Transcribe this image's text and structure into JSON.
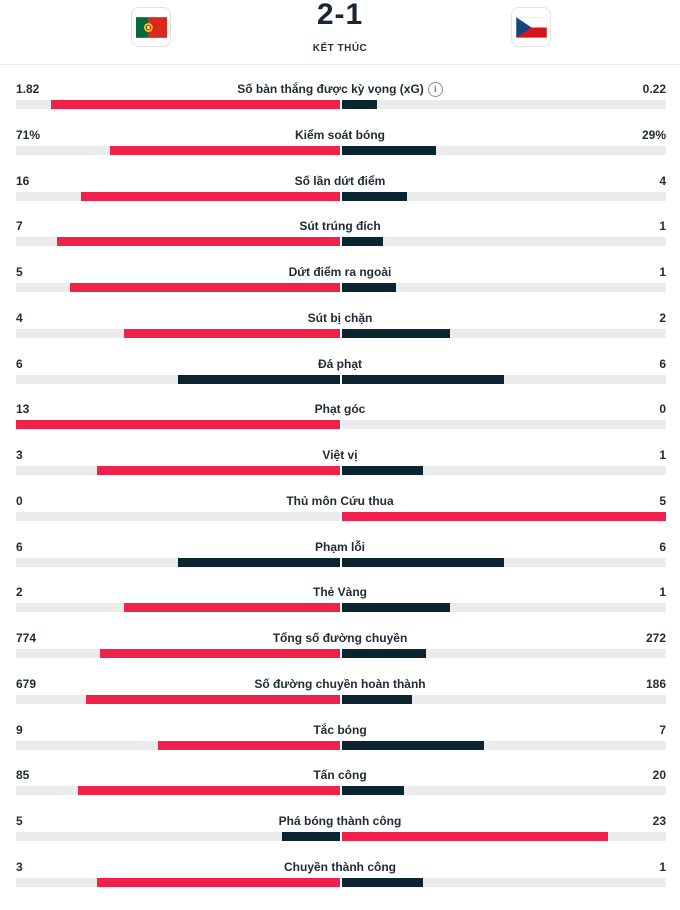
{
  "match": {
    "score": "2-1",
    "status": "KẾT THÚC",
    "home_flag": "portugal-flag",
    "away_flag": "czechia-flag"
  },
  "colors": {
    "winner": "#f0224b",
    "loser": "#0b2530",
    "track": "#ebebeb"
  },
  "stats": [
    {
      "label": "Số bàn thắng được kỳ vọng (xG)",
      "home": "1.82",
      "away": "0.22",
      "home_n": 1.82,
      "away_n": 0.22,
      "info": true
    },
    {
      "label": "Kiểm soát bóng",
      "home": "71%",
      "away": "29%",
      "home_n": 71,
      "away_n": 29
    },
    {
      "label": "Số lần dứt điểm",
      "home": "16",
      "away": "4",
      "home_n": 16,
      "away_n": 4
    },
    {
      "label": "Sút trúng đích",
      "home": "7",
      "away": "1",
      "home_n": 7,
      "away_n": 1
    },
    {
      "label": "Dứt điểm ra ngoài",
      "home": "5",
      "away": "1",
      "home_n": 5,
      "away_n": 1
    },
    {
      "label": "Sút bị chặn",
      "home": "4",
      "away": "2",
      "home_n": 4,
      "away_n": 2
    },
    {
      "label": "Đá phạt",
      "home": "6",
      "away": "6",
      "home_n": 6,
      "away_n": 6
    },
    {
      "label": "Phạt góc",
      "home": "13",
      "away": "0",
      "home_n": 13,
      "away_n": 0
    },
    {
      "label": "Việt vị",
      "home": "3",
      "away": "1",
      "home_n": 3,
      "away_n": 1
    },
    {
      "label": "Thủ môn Cứu thua",
      "home": "0",
      "away": "5",
      "home_n": 0,
      "away_n": 5
    },
    {
      "label": "Phạm lỗi",
      "home": "6",
      "away": "6",
      "home_n": 6,
      "away_n": 6
    },
    {
      "label": "Thẻ Vàng",
      "home": "2",
      "away": "1",
      "home_n": 2,
      "away_n": 1
    },
    {
      "label": "Tổng số đường chuyền",
      "home": "774",
      "away": "272",
      "home_n": 774,
      "away_n": 272
    },
    {
      "label": "Số đường chuyền hoàn thành",
      "home": "679",
      "away": "186",
      "home_n": 679,
      "away_n": 186
    },
    {
      "label": "Tắc bóng",
      "home": "9",
      "away": "7",
      "home_n": 9,
      "away_n": 7
    },
    {
      "label": "Tấn công",
      "home": "85",
      "away": "20",
      "home_n": 85,
      "away_n": 20
    },
    {
      "label": "Phá bóng thành công",
      "home": "5",
      "away": "23",
      "home_n": 5,
      "away_n": 23
    },
    {
      "label": "Chuyền thành công",
      "home": "3",
      "away": "1",
      "home_n": 3,
      "away_n": 1
    }
  ]
}
